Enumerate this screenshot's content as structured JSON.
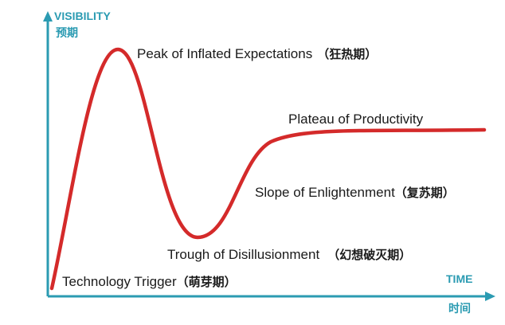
{
  "axes": {
    "y_label": "VISIBILITY",
    "y_label_cn": "预期",
    "x_label": "TIME",
    "x_label_cn": "时间"
  },
  "phases": [
    {
      "name": "Technology Trigger",
      "cn": "（萌芽期）"
    },
    {
      "name": "Peak of Inflated Expectations",
      "cn": "（狂热期）"
    },
    {
      "name": "Trough of Disillusionment",
      "cn": "（幻想破灭期）"
    },
    {
      "name": "Slope of Enlightenment",
      "cn": "（复苏期）"
    },
    {
      "name": "Plateau of Productivity"
    }
  ]
}
